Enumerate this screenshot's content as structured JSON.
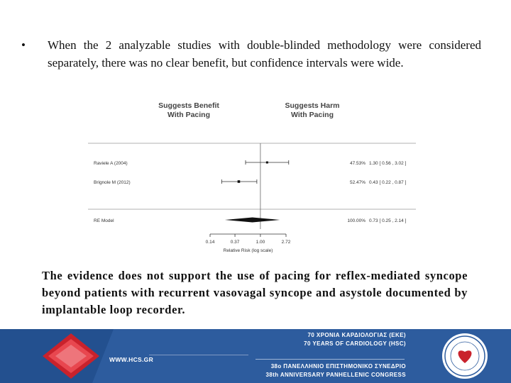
{
  "slide": {
    "bullet": "When the 2 analyzable studies with double-blinded methodology were considered separately, there was no clear benefit, but confidence intervals were wide.",
    "conclusion": "The evidence does not support the use of pacing for reflex-mediated syncope beyond patients with recurrent vasovagal syncope and asystole documented by implantable loop recorder."
  },
  "chart_data": {
    "type": "forest",
    "header_left": [
      "Suggests Benefit",
      "With Pacing"
    ],
    "header_right": [
      "Suggests Harm",
      "With Pacing"
    ],
    "xlabel": "Relative Risk (log scale)",
    "x_scale": "log",
    "x_ticks": [
      0.14,
      0.37,
      1.0,
      2.72
    ],
    "x_tick_labels": [
      "0.14",
      "0.37",
      "1.00",
      "2.72"
    ],
    "reference_line": 1.0,
    "studies": [
      {
        "name": "Raviele A (2004)",
        "weight": "47.53%",
        "rr": 1.3,
        "ci_low": 0.56,
        "ci_high": 3.02,
        "ci_text": "1.30 [ 0.56 , 3.02 ]"
      },
      {
        "name": "Brignole M (2012)",
        "weight": "52.47%",
        "rr": 0.43,
        "ci_low": 0.22,
        "ci_high": 0.87,
        "ci_text": "0.43 [ 0.22 , 0.87 ]"
      }
    ],
    "pooled": {
      "name": "RE Model",
      "weight": "100.00%",
      "rr": 0.73,
      "ci_low": 0.25,
      "ci_high": 2.14,
      "ci_text": "0.73 [ 0.25 , 2.14 ]"
    }
  },
  "banner": {
    "url": "WWW.HCS.GR",
    "line1": "70 ΧΡΟΝΙΑ ΚΑΡΔΙΟΛΟΓΙΑΣ (ΕΚΕ)",
    "line2": "70 YEARS OF CARDIOLOGY (HSC)",
    "line3": "38ο ΠΑΝΕΛΛΗΝΙΟ ΕΠΙΣΤΗΜΟΝΙΚΟ ΣΥΝΕΔΡΙΟ",
    "line4": "38th ANNIVERSARY PANHELLENIC CONGRESS",
    "bg_color": "#2d5c9e",
    "accent_red": "#d6262f"
  }
}
